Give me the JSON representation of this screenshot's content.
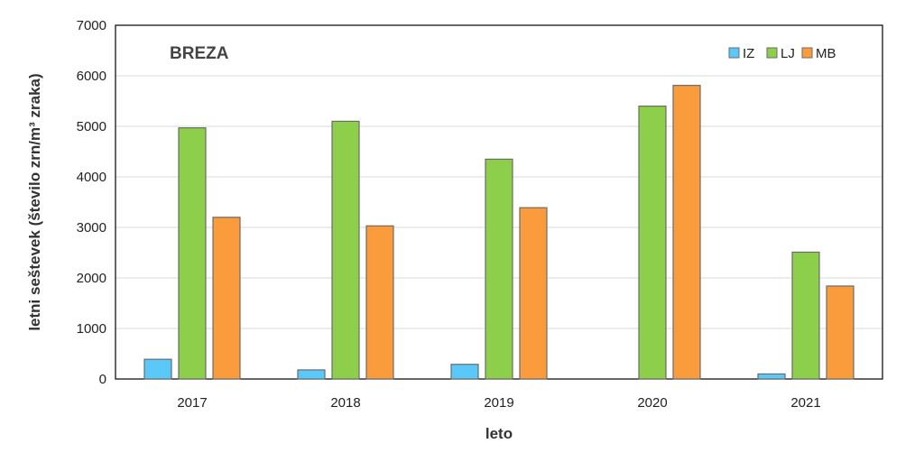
{
  "chart_data": {
    "type": "bar",
    "title": "BREZA",
    "xlabel": "leto",
    "ylabel": "letni seštevek (število zrn/m³ zraka)",
    "categories": [
      "2017",
      "2018",
      "2019",
      "2020",
      "2021"
    ],
    "ylim": [
      0,
      7000
    ],
    "yticks": [
      0,
      1000,
      2000,
      3000,
      4000,
      5000,
      6000,
      7000
    ],
    "grid": true,
    "legend_position": "top-right",
    "series": [
      {
        "name": "IZ",
        "color": "#5bc8fa",
        "values": [
          390,
          180,
          290,
          0,
          100
        ]
      },
      {
        "name": "LJ",
        "color": "#8dcf4a",
        "values": [
          4970,
          5100,
          4350,
          5400,
          2510
        ]
      },
      {
        "name": "MB",
        "color": "#fa9b3c",
        "values": [
          3200,
          3030,
          3390,
          5810,
          1840
        ]
      }
    ]
  }
}
